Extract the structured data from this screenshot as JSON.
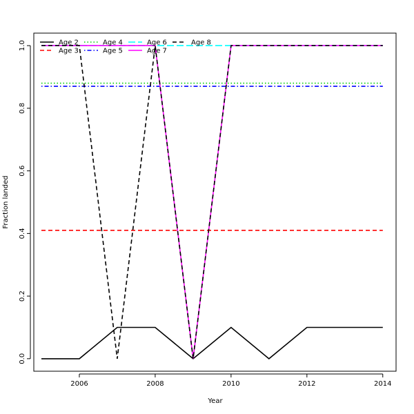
{
  "chart_data": {
    "type": "line",
    "title": "",
    "xlabel": "Year",
    "ylabel": "Fraction landed",
    "xlim": [
      2004.8,
      2014.35
    ],
    "ylim": [
      -0.04,
      1.04
    ],
    "x_ticks": [
      2006,
      2008,
      2010,
      2012,
      2014
    ],
    "y_ticks": [
      0.0,
      0.2,
      0.4,
      0.6,
      0.8,
      1.0
    ],
    "x_tick_labels": [
      "2006",
      "2008",
      "2010",
      "2012",
      "2014"
    ],
    "y_tick_labels": [
      "0.0",
      "0.2",
      "0.4",
      "0.6",
      "0.8",
      "1.0"
    ],
    "grid": false,
    "legend": {
      "placement": "top-left",
      "columns": 4
    },
    "x": [
      2005,
      2006,
      2007,
      2008,
      2009,
      2010,
      2011,
      2012,
      2013,
      2014
    ],
    "series": [
      {
        "name": "Age 2",
        "color": "#000000",
        "dash": "solid",
        "values": [
          0,
          0,
          0.1,
          0.1,
          0,
          0.1,
          0,
          0.1,
          0.1,
          0.1
        ]
      },
      {
        "name": "Age 3",
        "color": "#ff0000",
        "dash": "dashed",
        "values": [
          0.41,
          0.41,
          0.41,
          0.41,
          0.41,
          0.41,
          0.41,
          0.41,
          0.41,
          0.41
        ]
      },
      {
        "name": "Age 4",
        "color": "#00cd00",
        "dash": "dotted",
        "values": [
          0.88,
          0.88,
          0.88,
          0.88,
          0.88,
          0.88,
          0.88,
          0.88,
          0.88,
          0.88
        ]
      },
      {
        "name": "Age 5",
        "color": "#0000ff",
        "dash": "dotdash",
        "values": [
          0.87,
          0.87,
          0.87,
          0.87,
          0.87,
          0.87,
          0.87,
          0.87,
          0.87,
          0.87
        ]
      },
      {
        "name": "Age 6",
        "color": "#00ffff",
        "dash": "longdash",
        "values": [
          1,
          1,
          1,
          1,
          1,
          1,
          1,
          1,
          1,
          1
        ]
      },
      {
        "name": "Age 7",
        "color": "#ff00ff",
        "dash": "solid",
        "values": [
          1,
          1,
          1,
          1,
          0,
          1,
          1,
          1,
          1,
          1
        ]
      },
      {
        "name": "Age 8",
        "color": "#000000",
        "dash": "dashed",
        "values": [
          1,
          1,
          0,
          1,
          0,
          1,
          1,
          1,
          1,
          1
        ]
      }
    ]
  }
}
